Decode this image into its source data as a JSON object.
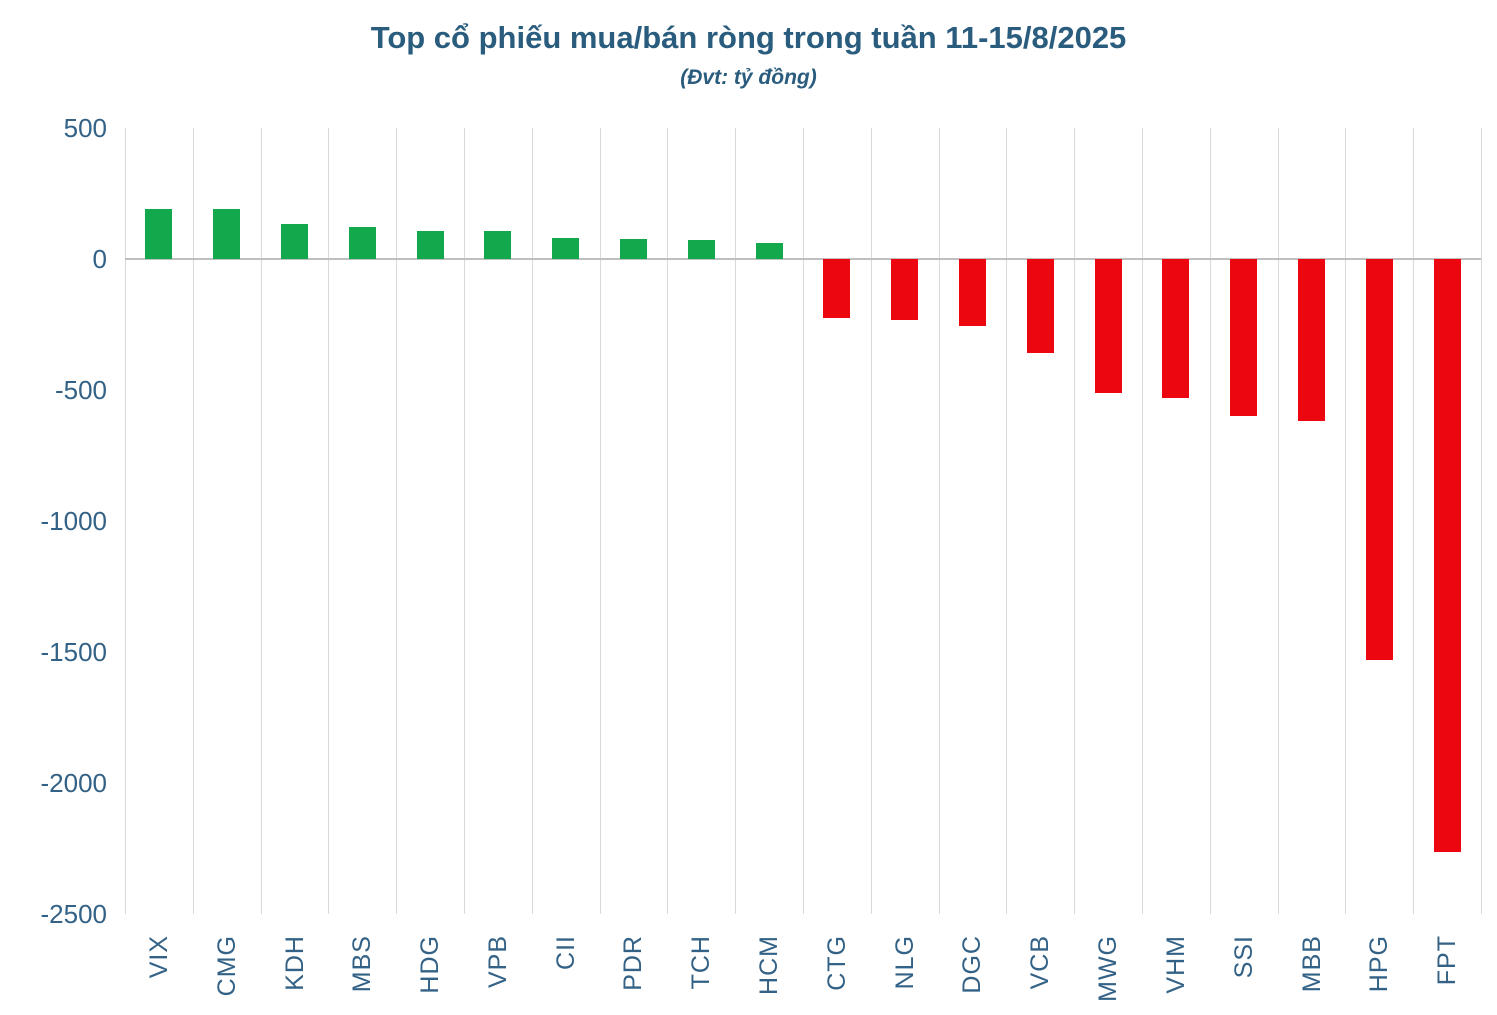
{
  "chart_data": {
    "type": "bar",
    "title": "Top cổ phiếu mua/bán ròng trong tuần 11-15/8/2025",
    "subtitle": "(Đvt: tỷ đồng)",
    "unit": "tỷ đồng",
    "categories": [
      "VIX",
      "CMG",
      "KDH",
      "MBS",
      "HDG",
      "VPB",
      "CII",
      "PDR",
      "TCH",
      "HCM",
      "CTG",
      "NLG",
      "DGC",
      "VCB",
      "MWG",
      "VHM",
      "SSI",
      "MBB",
      "HPG",
      "FPT"
    ],
    "values": [
      190,
      190,
      133,
      124,
      107,
      106,
      82,
      78,
      73,
      60,
      -225,
      -233,
      -256,
      -360,
      -510,
      -530,
      -598,
      -618,
      -1532,
      -2262
    ],
    "xlabel": "",
    "ylabel": "",
    "ylim": [
      -2500,
      500
    ],
    "yticks": [
      500,
      0,
      -500,
      -1000,
      -1500,
      -2000,
      -2500
    ],
    "grid": "vertical-category-lines-only",
    "legend_position": "none",
    "colors": {
      "positive_bar": "#12A84C",
      "negative_bar": "#EC0710",
      "title_text": "#2A5C7E",
      "axis_label_text": "#336286",
      "gridline": "#D9D9D9",
      "zero_line": "#BFBFBF"
    }
  }
}
